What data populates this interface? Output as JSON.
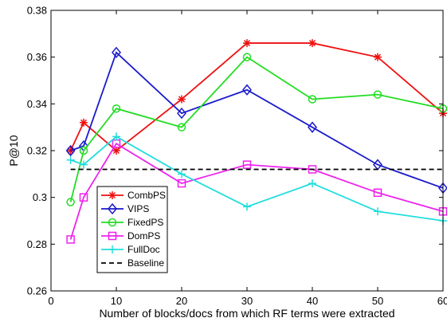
{
  "chart_data": {
    "type": "line",
    "title": "",
    "xlabel": "Number of blocks/docs from which RF terms were extracted",
    "ylabel": "P@10",
    "xlim": [
      0,
      60
    ],
    "ylim": [
      0.26,
      0.38
    ],
    "xticks": [
      0,
      10,
      20,
      30,
      40,
      50,
      60
    ],
    "yticks": [
      0.26,
      0.28,
      0.3,
      0.32,
      0.34,
      0.36,
      0.38
    ],
    "xtick_labels": [
      "0",
      "10",
      "20",
      "30",
      "40",
      "50",
      "60"
    ],
    "ytick_labels": [
      "0.26",
      "0.28",
      "0.3",
      "0.32",
      "0.34",
      "0.36",
      "0.38"
    ],
    "grid": false,
    "legend_position": "bottom-left",
    "series": [
      {
        "name": "CombPS",
        "color": "#ee1111",
        "marker": "star",
        "dash": "solid",
        "x": [
          3,
          5,
          10,
          20,
          30,
          40,
          50,
          60
        ],
        "y": [
          0.32,
          0.332,
          0.32,
          0.342,
          0.366,
          0.366,
          0.36,
          0.336
        ]
      },
      {
        "name": "VIPS",
        "color": "#1a1acc",
        "marker": "diamond",
        "dash": "solid",
        "x": [
          3,
          5,
          10,
          20,
          30,
          40,
          50,
          60
        ],
        "y": [
          0.32,
          0.322,
          0.362,
          0.336,
          0.346,
          0.33,
          0.314,
          0.304
        ]
      },
      {
        "name": "FixedPS",
        "color": "#22dd22",
        "marker": "circle",
        "dash": "solid",
        "x": [
          3,
          5,
          10,
          20,
          30,
          40,
          50,
          60
        ],
        "y": [
          0.298,
          0.32,
          0.338,
          0.33,
          0.36,
          0.342,
          0.344,
          0.338
        ]
      },
      {
        "name": "DomPS",
        "color": "#ee22ee",
        "marker": "square",
        "dash": "solid",
        "x": [
          3,
          5,
          10,
          20,
          30,
          40,
          50,
          60
        ],
        "y": [
          0.282,
          0.3,
          0.323,
          0.306,
          0.314,
          0.312,
          0.302,
          0.294
        ]
      },
      {
        "name": "FullDoc",
        "color": "#22dddd",
        "marker": "plus",
        "dash": "solid",
        "x": [
          3,
          5,
          10,
          20,
          30,
          40,
          50,
          60
        ],
        "y": [
          0.316,
          0.314,
          0.326,
          0.31,
          0.296,
          0.306,
          0.294,
          0.29
        ]
      },
      {
        "name": "Baseline",
        "color": "#000000",
        "marker": "none",
        "dash": "dashed",
        "x": [
          3,
          60
        ],
        "y": [
          0.312,
          0.312
        ]
      }
    ]
  }
}
